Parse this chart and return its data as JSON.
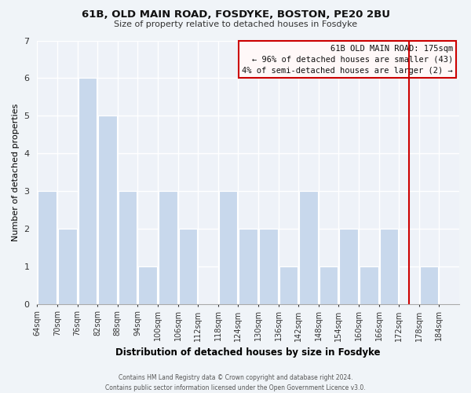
{
  "title": "61B, OLD MAIN ROAD, FOSDYKE, BOSTON, PE20 2BU",
  "subtitle": "Size of property relative to detached houses in Fosdyke",
  "xlabel": "Distribution of detached houses by size in Fosdyke",
  "ylabel": "Number of detached properties",
  "bar_color": "#c8d8ec",
  "bar_edge_color": "#ffffff",
  "bin_labels": [
    "64sqm",
    "70sqm",
    "76sqm",
    "82sqm",
    "88sqm",
    "94sqm",
    "100sqm",
    "106sqm",
    "112sqm",
    "118sqm",
    "124sqm",
    "130sqm",
    "136sqm",
    "142sqm",
    "148sqm",
    "154sqm",
    "160sqm",
    "166sqm",
    "172sqm",
    "178sqm",
    "184sqm"
  ],
  "bar_heights": [
    3,
    2,
    6,
    5,
    3,
    1,
    3,
    2,
    0,
    3,
    2,
    2,
    1,
    3,
    1,
    2,
    1,
    2,
    0,
    1,
    0
  ],
  "ylim": [
    0,
    7
  ],
  "yticks": [
    0,
    1,
    2,
    3,
    4,
    5,
    6,
    7
  ],
  "marker_color": "#cc0000",
  "annotation_title": "61B OLD MAIN ROAD: 175sqm",
  "annotation_line1": "← 96% of detached houses are smaller (43)",
  "annotation_line2": "4% of semi-detached houses are larger (2) →",
  "annotation_box_facecolor": "#fff8f8",
  "annotation_box_edge": "#cc0000",
  "footer_line1": "Contains HM Land Registry data © Crown copyright and database right 2024.",
  "footer_line2": "Contains public sector information licensed under the Open Government Licence v3.0.",
  "background_color": "#f0f4f8",
  "plot_bg_color": "#eef2f8",
  "grid_color": "#ffffff",
  "bin_edges": [
    64,
    70,
    76,
    82,
    88,
    94,
    100,
    106,
    112,
    118,
    124,
    130,
    136,
    142,
    148,
    154,
    160,
    166,
    172,
    178,
    184,
    190
  ]
}
